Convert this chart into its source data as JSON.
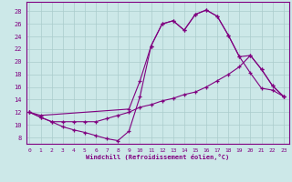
{
  "bg_color": "#cce8e8",
  "line_color": "#800080",
  "grid_color": "#aacccc",
  "xlabel": "Windchill (Refroidissement éolien,°C)",
  "xticks": [
    0,
    1,
    2,
    3,
    4,
    5,
    6,
    7,
    8,
    9,
    10,
    11,
    12,
    13,
    14,
    15,
    16,
    17,
    18,
    19,
    20,
    21,
    22,
    23
  ],
  "yticks": [
    8,
    10,
    12,
    14,
    16,
    18,
    20,
    22,
    24,
    26,
    28
  ],
  "xlim": [
    -0.3,
    23.5
  ],
  "ylim": [
    7.0,
    29.5
  ],
  "curve1_x": [
    0,
    1,
    2,
    3,
    4,
    5,
    6,
    7,
    8,
    9,
    10,
    11,
    12,
    13,
    14,
    15,
    16,
    17,
    18,
    19,
    20,
    21,
    22,
    23
  ],
  "curve1_y": [
    12,
    11.2,
    10.5,
    9.7,
    9.2,
    8.8,
    8.3,
    7.8,
    7.5,
    9.0,
    14.5,
    22.5,
    26,
    26.5,
    25,
    27.5,
    28.2,
    27.2,
    24.2,
    20.8,
    18.2,
    15.8,
    15.5,
    14.5
  ],
  "curve2_x": [
    0,
    1,
    2,
    3,
    4,
    5,
    6,
    7,
    8,
    9,
    10,
    11,
    12,
    13,
    14,
    15,
    16,
    17,
    18,
    19,
    20,
    21,
    22,
    23
  ],
  "curve2_y": [
    12,
    11.2,
    10.5,
    10.5,
    10.5,
    10.5,
    10.5,
    11.0,
    11.5,
    12.0,
    12.8,
    13.2,
    13.8,
    14.2,
    14.8,
    15.2,
    16.0,
    17.0,
    18.0,
    19.2,
    21.0,
    18.8,
    16.2,
    14.5
  ],
  "curve3_x": [
    0,
    1,
    9,
    10,
    11,
    12,
    13,
    14,
    15,
    16,
    17,
    18,
    19,
    20,
    21,
    22,
    23
  ],
  "curve3_y": [
    12,
    11.5,
    12.5,
    17.0,
    22.5,
    26.0,
    26.5,
    25.0,
    27.5,
    28.2,
    27.2,
    24.2,
    20.8,
    21.0,
    18.8,
    16.2,
    14.5
  ]
}
